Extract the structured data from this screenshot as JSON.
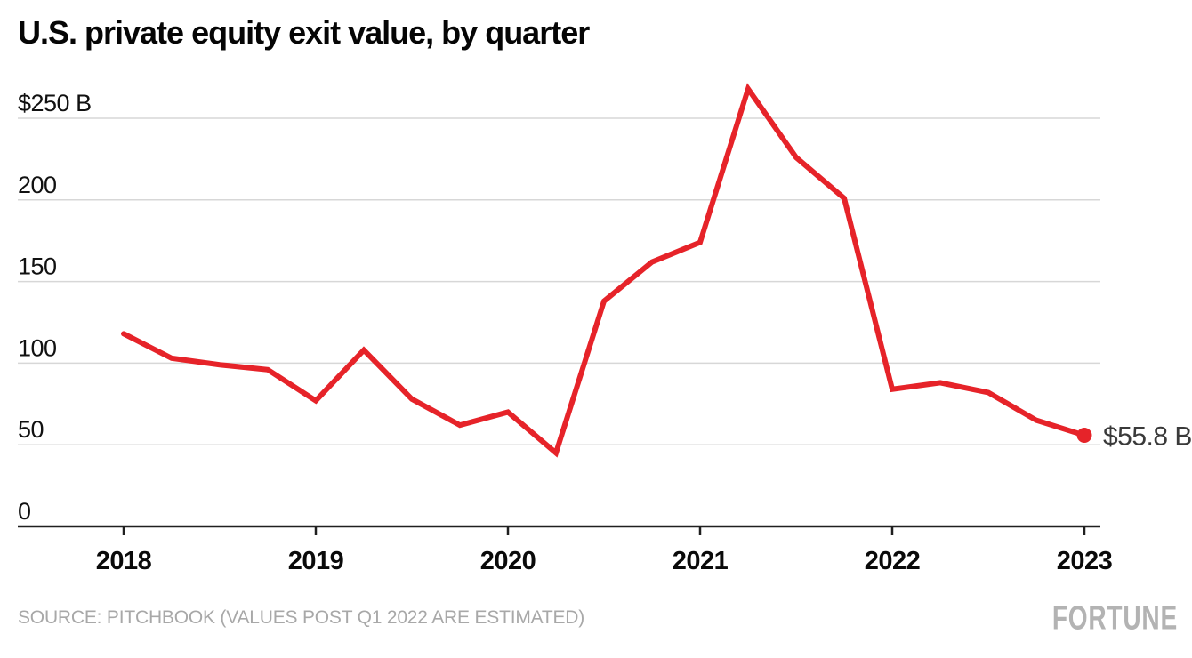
{
  "header": {
    "title": "U.S. private equity exit value, by quarter"
  },
  "footer": {
    "source": "SOURCE: PITCHBOOK (VALUES POST Q1 2022 ARE ESTIMATED)",
    "brand": "FORTUNE"
  },
  "colors": {
    "line": "#e62329",
    "grid": "#d7d7d7",
    "axis": "#1f1f1f",
    "tick_text": "#0a0a0a",
    "muted_text": "#a8a8a8",
    "brand_gray": "#b3b3b3",
    "end_label_text": "#3a3a3a"
  },
  "chart_data": {
    "type": "line",
    "title": "U.S. private equity exit value, by quarter",
    "unit": "USD billions",
    "categories": [
      "Q1 2018",
      "Q2 2018",
      "Q3 2018",
      "Q4 2018",
      "Q1 2019",
      "Q2 2019",
      "Q3 2019",
      "Q4 2019",
      "Q1 2020",
      "Q2 2020",
      "Q3 2020",
      "Q4 2020",
      "Q1 2021",
      "Q2 2021",
      "Q3 2021",
      "Q4 2021",
      "Q1 2022",
      "Q2 2022",
      "Q3 2022",
      "Q4 2022",
      "Q1 2023"
    ],
    "values": [
      118,
      103,
      99,
      96,
      77,
      108,
      78,
      62,
      70,
      45,
      138,
      162,
      174,
      268,
      226,
      201,
      84,
      88,
      82,
      65,
      55.8
    ],
    "y_ticks": [
      {
        "value": 250,
        "label": "$250 B"
      },
      {
        "value": 200,
        "label": "200"
      },
      {
        "value": 150,
        "label": "150"
      },
      {
        "value": 100,
        "label": "100"
      },
      {
        "value": 50,
        "label": "50"
      },
      {
        "value": 0,
        "label": "0"
      }
    ],
    "x_ticks": [
      {
        "label": "2018",
        "quarter_index": 0
      },
      {
        "label": "2019",
        "quarter_index": 4
      },
      {
        "label": "2020",
        "quarter_index": 8
      },
      {
        "label": "2021",
        "quarter_index": 12
      },
      {
        "label": "2022",
        "quarter_index": 16
      },
      {
        "label": "2023",
        "quarter_index": 20
      }
    ],
    "ylim": [
      0,
      270
    ],
    "grid": true,
    "legend": "none",
    "end_label": "$55.8 B"
  }
}
